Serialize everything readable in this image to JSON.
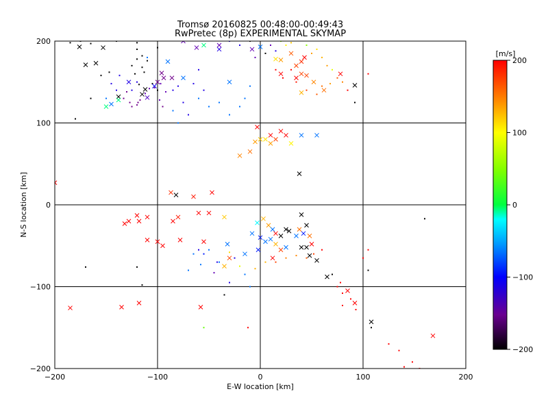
{
  "figure": {
    "title_line1": "Tromsø 20160825 00:48:00-00:49:43",
    "title_line2": "RwPretec (8p) EXPERIMENTAL SKYMAP"
  },
  "chart_data": {
    "type": "scatter",
    "xlabel": "E-W location [km]",
    "ylabel": "N-S location [km]",
    "xlim": [
      -200,
      200
    ],
    "ylim": [
      -200,
      200
    ],
    "xticks": [
      "−200",
      "−100",
      "0",
      "100",
      "200"
    ],
    "yticks": [
      "−200",
      "−100",
      "0",
      "100",
      "200"
    ],
    "grid": true,
    "colorbar": {
      "label": "[m/s]",
      "range": [
        -200,
        200
      ],
      "ticks": [
        "200",
        "100",
        "0",
        "−100",
        "−200"
      ],
      "colors": [
        "#000000",
        "#8000a0",
        "#0000ff",
        "#00ffff",
        "#00ff00",
        "#ffff00",
        "#ff8000",
        "#ff0000"
      ]
    },
    "points_cross": [
      [
        -170,
        171,
        -200
      ],
      [
        -160,
        173,
        -200
      ],
      [
        -153,
        192,
        -200
      ],
      [
        -176,
        193,
        -200
      ],
      [
        -138,
        132,
        -200
      ],
      [
        -115,
        135,
        -200
      ],
      [
        -112,
        141,
        -200
      ],
      [
        -100,
        150,
        -150
      ],
      [
        -94,
        155,
        -150
      ],
      [
        -96,
        161,
        -150
      ],
      [
        -86,
        155,
        -150
      ],
      [
        -75,
        155,
        -60
      ],
      [
        -90,
        175,
        -60
      ],
      [
        -103,
        145,
        -90
      ],
      [
        -110,
        131,
        -120
      ],
      [
        -145,
        123,
        -60
      ],
      [
        -128,
        150,
        -100
      ],
      [
        -138,
        128,
        0
      ],
      [
        -150,
        120,
        0
      ],
      [
        -30,
        150,
        -60
      ],
      [
        -40,
        190,
        -100
      ],
      [
        -55,
        195,
        0
      ],
      [
        -75,
        200,
        -130
      ],
      [
        -62,
        192,
        -130
      ],
      [
        -40,
        195,
        -130
      ],
      [
        0,
        193,
        -60
      ],
      [
        -8,
        190,
        -130
      ],
      [
        15,
        178,
        100
      ],
      [
        20,
        177,
        130
      ],
      [
        30,
        185,
        160
      ],
      [
        35,
        170,
        170
      ],
      [
        40,
        175,
        180
      ],
      [
        43,
        180,
        200
      ],
      [
        40,
        160,
        170
      ],
      [
        45,
        158,
        170
      ],
      [
        52,
        150,
        140
      ],
      [
        62,
        140,
        150
      ],
      [
        78,
        160,
        200
      ],
      [
        20,
        160,
        200
      ],
      [
        35,
        155,
        200
      ],
      [
        40,
        137,
        120
      ],
      [
        92,
        146,
        -200
      ],
      [
        20,
        90,
        200
      ],
      [
        25,
        85,
        200
      ],
      [
        15,
        80,
        170
      ],
      [
        10,
        75,
        130
      ],
      [
        5,
        80,
        100
      ],
      [
        0,
        80,
        110
      ],
      [
        -5,
        77,
        130
      ],
      [
        40,
        85,
        -60
      ],
      [
        55,
        85,
        -60
      ],
      [
        30,
        75,
        90
      ],
      [
        -10,
        65,
        150
      ],
      [
        -20,
        60,
        140
      ],
      [
        38,
        38,
        -200
      ],
      [
        10,
        85,
        200
      ],
      [
        -3,
        95,
        200
      ],
      [
        -47,
        15,
        200
      ],
      [
        -65,
        10,
        190
      ],
      [
        -82,
        12,
        -200
      ],
      [
        -87,
        15,
        180
      ],
      [
        -120,
        -13,
        200
      ],
      [
        -118,
        -20,
        200
      ],
      [
        -110,
        -15,
        200
      ],
      [
        -80,
        -15,
        190
      ],
      [
        -85,
        -20,
        200
      ],
      [
        -60,
        -10,
        200
      ],
      [
        -50,
        -10,
        200
      ],
      [
        -35,
        -15,
        110
      ],
      [
        -132,
        -23,
        200
      ],
      [
        -128,
        -20,
        200
      ],
      [
        -100,
        -45,
        200
      ],
      [
        -95,
        -50,
        200
      ],
      [
        -110,
        -43,
        200
      ],
      [
        -78,
        -43,
        200
      ],
      [
        -55,
        -45,
        200
      ],
      [
        -32,
        -48,
        -60
      ],
      [
        -30,
        -65,
        170
      ],
      [
        -35,
        -75,
        120
      ],
      [
        -185,
        -126,
        200
      ],
      [
        -135,
        -125,
        200
      ],
      [
        -118,
        -120,
        200
      ],
      [
        -58,
        -125,
        200
      ],
      [
        -200,
        27,
        200
      ],
      [
        3,
        -17,
        120
      ],
      [
        -3,
        -22,
        -30
      ],
      [
        8,
        -25,
        130
      ],
      [
        12,
        -30,
        -60
      ],
      [
        15,
        -35,
        200
      ],
      [
        20,
        -38,
        -200
      ],
      [
        25,
        -30,
        -200
      ],
      [
        28,
        -32,
        -200
      ],
      [
        35,
        -38,
        -60
      ],
      [
        38,
        -30,
        150
      ],
      [
        42,
        -35,
        -80
      ],
      [
        40,
        -12,
        -200
      ],
      [
        45,
        -25,
        -200
      ],
      [
        48,
        -38,
        150
      ],
      [
        50,
        -48,
        200
      ],
      [
        40,
        -52,
        -200
      ],
      [
        45,
        -52,
        -200
      ],
      [
        48,
        -62,
        -200
      ],
      [
        55,
        -68,
        -200
      ],
      [
        10,
        -42,
        -60
      ],
      [
        5,
        -45,
        -60
      ],
      [
        0,
        -40,
        -80
      ],
      [
        15,
        -48,
        120
      ],
      [
        20,
        -55,
        170
      ],
      [
        12,
        -65,
        200
      ],
      [
        -8,
        -35,
        -60
      ],
      [
        65,
        -88,
        -200
      ],
      [
        85,
        -105,
        200
      ],
      [
        92,
        -120,
        200
      ],
      [
        108,
        -143,
        -200
      ],
      [
        168,
        -160,
        200
      ],
      [
        -2,
        -55,
        -80
      ],
      [
        25,
        -52,
        -60
      ],
      [
        -15,
        -60,
        -60
      ]
    ],
    "points_dot": [
      [
        -185,
        198,
        -200
      ],
      [
        -175,
        200,
        -200
      ],
      [
        -165,
        197,
        -200
      ],
      [
        -140,
        200,
        -200
      ],
      [
        -120,
        198,
        -200
      ],
      [
        -147,
        162,
        -200
      ],
      [
        -155,
        158,
        -200
      ],
      [
        -125,
        170,
        -200
      ],
      [
        -120,
        178,
        -200
      ],
      [
        -115,
        182,
        -200
      ],
      [
        -110,
        176,
        -200
      ],
      [
        -122,
        160,
        -200
      ],
      [
        -118,
        147,
        -200
      ],
      [
        -113,
        162,
        -200
      ],
      [
        -105,
        148,
        -200
      ],
      [
        -100,
        140,
        -200
      ],
      [
        -115,
        168,
        -200
      ],
      [
        -130,
        138,
        -150
      ],
      [
        -133,
        130,
        -150
      ],
      [
        -127,
        125,
        -150
      ],
      [
        -125,
        120,
        -150
      ],
      [
        -120,
        122,
        -150
      ],
      [
        -117,
        128,
        -150
      ],
      [
        -112,
        136,
        -130
      ],
      [
        -108,
        142,
        -130
      ],
      [
        -140,
        140,
        -100
      ],
      [
        -145,
        148,
        -100
      ],
      [
        -137,
        158,
        -100
      ],
      [
        -125,
        140,
        -100
      ],
      [
        -119,
        125,
        -150
      ],
      [
        -150,
        130,
        -60
      ],
      [
        -165,
        130,
        -200
      ],
      [
        -180,
        105,
        -200
      ],
      [
        -110,
        180,
        -60
      ],
      [
        -120,
        150,
        -100
      ],
      [
        -103,
        143,
        -150
      ],
      [
        -97,
        148,
        -130
      ],
      [
        -92,
        138,
        -130
      ],
      [
        -85,
        140,
        -100
      ],
      [
        -80,
        145,
        -100
      ],
      [
        -60,
        165,
        -100
      ],
      [
        -65,
        148,
        -100
      ],
      [
        -55,
        140,
        -100
      ],
      [
        -60,
        130,
        -60
      ],
      [
        -50,
        120,
        -60
      ],
      [
        -40,
        125,
        -60
      ],
      [
        -30,
        110,
        -60
      ],
      [
        -20,
        120,
        -60
      ],
      [
        -15,
        130,
        -60
      ],
      [
        -10,
        145,
        -60
      ],
      [
        -5,
        180,
        -130
      ],
      [
        5,
        185,
        -200
      ],
      [
        -70,
        110,
        -100
      ],
      [
        -75,
        125,
        -100
      ],
      [
        -80,
        100,
        -60
      ],
      [
        -85,
        115,
        -60
      ],
      [
        -95,
        120,
        -150
      ],
      [
        -98,
        128,
        -130
      ],
      [
        -120,
        190,
        -200
      ],
      [
        -100,
        192,
        -200
      ],
      [
        -30,
        200,
        -100
      ],
      [
        -20,
        195,
        -100
      ],
      [
        -10,
        200,
        -200
      ],
      [
        10,
        195,
        -130
      ],
      [
        15,
        188,
        -100
      ],
      [
        20,
        200,
        60
      ],
      [
        25,
        195,
        90
      ],
      [
        30,
        198,
        110
      ],
      [
        45,
        195,
        60
      ],
      [
        50,
        185,
        130
      ],
      [
        55,
        190,
        100
      ],
      [
        60,
        180,
        120
      ],
      [
        65,
        170,
        130
      ],
      [
        70,
        165,
        80
      ],
      [
        75,
        155,
        160
      ],
      [
        80,
        150,
        140
      ],
      [
        85,
        140,
        200
      ],
      [
        15,
        165,
        200
      ],
      [
        22,
        155,
        200
      ],
      [
        30,
        165,
        200
      ],
      [
        35,
        150,
        190
      ],
      [
        45,
        140,
        170
      ],
      [
        55,
        135,
        160
      ],
      [
        60,
        145,
        150
      ],
      [
        68,
        148,
        130
      ],
      [
        92,
        125,
        -200
      ],
      [
        105,
        160,
        200
      ],
      [
        160,
        -17,
        -200
      ],
      [
        105,
        -80,
        -200
      ],
      [
        -170,
        -76,
        -200
      ],
      [
        -120,
        -76,
        -200
      ],
      [
        -115,
        -98,
        -200
      ],
      [
        -60,
        -55,
        -100
      ],
      [
        -70,
        -80,
        -60
      ],
      [
        -58,
        -73,
        -60
      ],
      [
        -40,
        -70,
        -60
      ],
      [
        -25,
        -65,
        -100
      ],
      [
        -45,
        -83,
        -130
      ],
      [
        -35,
        -110,
        -200
      ],
      [
        -30,
        -95,
        -100
      ],
      [
        -10,
        -100,
        -60
      ],
      [
        -55,
        -150,
        50
      ],
      [
        -12,
        -150,
        200
      ],
      [
        -42,
        -70,
        -100
      ],
      [
        -65,
        -60,
        -60
      ],
      [
        -50,
        -55,
        -60
      ],
      [
        -30,
        -58,
        100
      ],
      [
        -20,
        -75,
        80
      ],
      [
        -15,
        -85,
        -60
      ],
      [
        -5,
        -78,
        120
      ],
      [
        5,
        -70,
        120
      ],
      [
        15,
        -70,
        170
      ],
      [
        25,
        -65,
        140
      ],
      [
        35,
        -62,
        140
      ],
      [
        45,
        -65,
        160
      ],
      [
        52,
        -60,
        170
      ],
      [
        -55,
        -60,
        -80
      ],
      [
        75,
        -100,
        200
      ],
      [
        80,
        -108,
        200
      ],
      [
        88,
        -115,
        200
      ],
      [
        93,
        -128,
        200
      ],
      [
        80,
        -123,
        200
      ],
      [
        125,
        -170,
        200
      ],
      [
        135,
        -178,
        200
      ],
      [
        140,
        -198,
        200
      ],
      [
        148,
        -192,
        200
      ],
      [
        155,
        -200,
        200
      ],
      [
        108,
        -150,
        -200
      ],
      [
        78,
        -95,
        200
      ],
      [
        70,
        -85,
        -200
      ],
      [
        100,
        -65,
        200
      ],
      [
        105,
        -55,
        200
      ],
      [
        60,
        -55,
        200
      ]
    ]
  }
}
